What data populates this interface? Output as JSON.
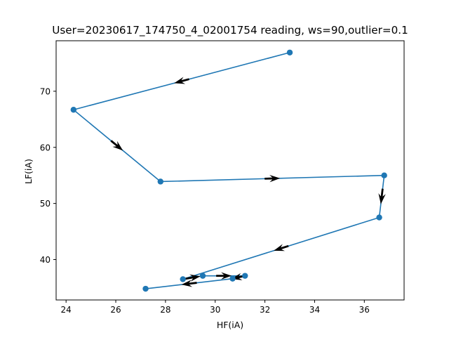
{
  "chart_data": {
    "type": "line",
    "title": "User=20230617_174750_4_02001754 reading, ws=90,outlier=0.1",
    "xlabel": "HF(iA)",
    "ylabel": "LF(iA)",
    "xlim": [
      23.6,
      37.6
    ],
    "ylim": [
      32.8,
      79.0
    ],
    "x_ticks": [
      24,
      26,
      28,
      30,
      32,
      34,
      36
    ],
    "y_ticks": [
      40,
      50,
      60,
      70
    ],
    "grid": false,
    "legend": "none",
    "series": [
      {
        "color": "#1f77b4",
        "marker": "circle",
        "arrows": true,
        "points": [
          {
            "x": 33.0,
            "y": 76.9
          },
          {
            "x": 24.3,
            "y": 66.7
          },
          {
            "x": 27.8,
            "y": 53.9
          },
          {
            "x": 36.8,
            "y": 55.0
          },
          {
            "x": 36.6,
            "y": 47.5
          },
          {
            "x": 28.7,
            "y": 36.5
          },
          {
            "x": 29.5,
            "y": 37.1
          },
          {
            "x": 31.2,
            "y": 37.1
          },
          {
            "x": 30.7,
            "y": 36.6
          },
          {
            "x": 27.2,
            "y": 34.8
          }
        ]
      }
    ]
  }
}
